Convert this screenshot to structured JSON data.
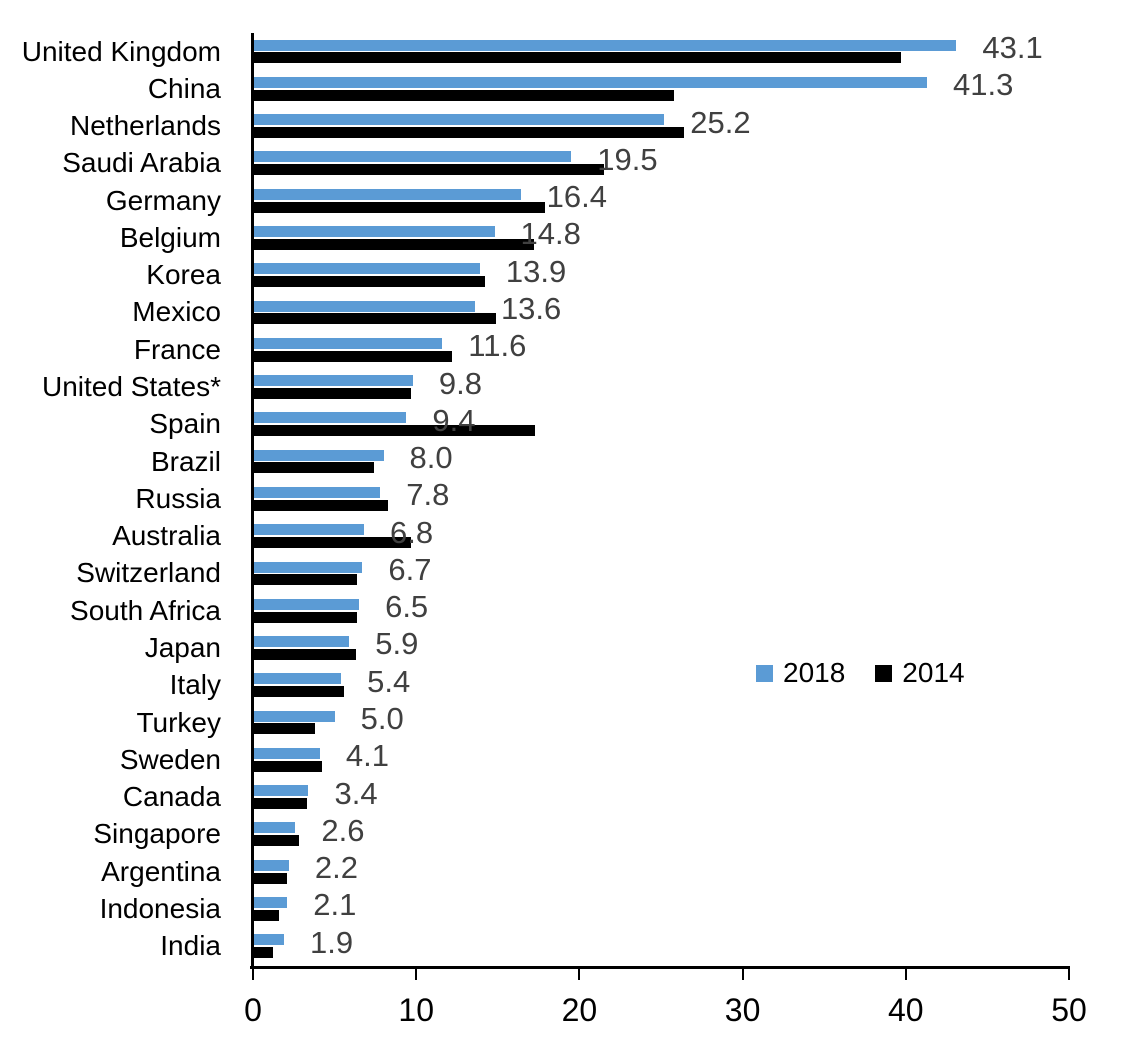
{
  "chart_data": {
    "type": "bar",
    "orientation": "horizontal",
    "title": "",
    "xlabel": "",
    "ylabel": "",
    "categories": [
      "United Kingdom",
      "China",
      "Netherlands",
      "Saudi Arabia",
      "Germany",
      "Belgium",
      "Korea",
      "Mexico",
      "France",
      "United States*",
      "Spain",
      "Brazil",
      "Russia",
      "Australia",
      "Switzerland",
      "South Africa",
      "Japan",
      "Italy",
      "Turkey",
      "Sweden",
      "Canada",
      "Singapore",
      "Argentina",
      "Indonesia",
      "India"
    ],
    "series": [
      {
        "name": "2018",
        "color": "#5B9BD5",
        "values": [
          43.1,
          41.3,
          25.2,
          19.5,
          16.4,
          14.8,
          13.9,
          13.6,
          11.6,
          9.8,
          9.4,
          8.0,
          7.8,
          6.8,
          6.7,
          6.5,
          5.9,
          5.4,
          5.0,
          4.1,
          3.4,
          2.6,
          2.2,
          2.1,
          1.9
        ]
      },
      {
        "name": "2014",
        "color": "#000000",
        "values": [
          39.7,
          25.8,
          26.4,
          21.5,
          17.9,
          17.2,
          14.2,
          14.9,
          12.2,
          9.7,
          17.3,
          7.4,
          8.3,
          9.7,
          6.4,
          6.4,
          6.3,
          5.6,
          3.8,
          4.2,
          3.3,
          2.8,
          2.1,
          1.6,
          1.2
        ]
      }
    ],
    "data_labels": {
      "series": "2018",
      "values": [
        "43.1",
        "41.3",
        "25.2",
        "19.5",
        "16.4",
        "14.8",
        "13.9",
        "13.6",
        "11.6",
        "9.8",
        "9.4",
        "8.0",
        "7.8",
        "6.8",
        "6.7",
        "6.5",
        "5.9",
        "5.4",
        "5.0",
        "4.1",
        "3.4",
        "2.6",
        "2.2",
        "2.1",
        "1.9"
      ],
      "color": "#404040"
    },
    "xlim": [
      0,
      50
    ],
    "xticks": [
      "0",
      "10",
      "20",
      "30",
      "40",
      "50"
    ],
    "grid": false,
    "axis_color": "#000000",
    "legend": {
      "position": "middle-right",
      "items": [
        {
          "label": "2018",
          "color": "#5B9BD5"
        },
        {
          "label": "2014",
          "color": "#000000"
        }
      ]
    }
  }
}
